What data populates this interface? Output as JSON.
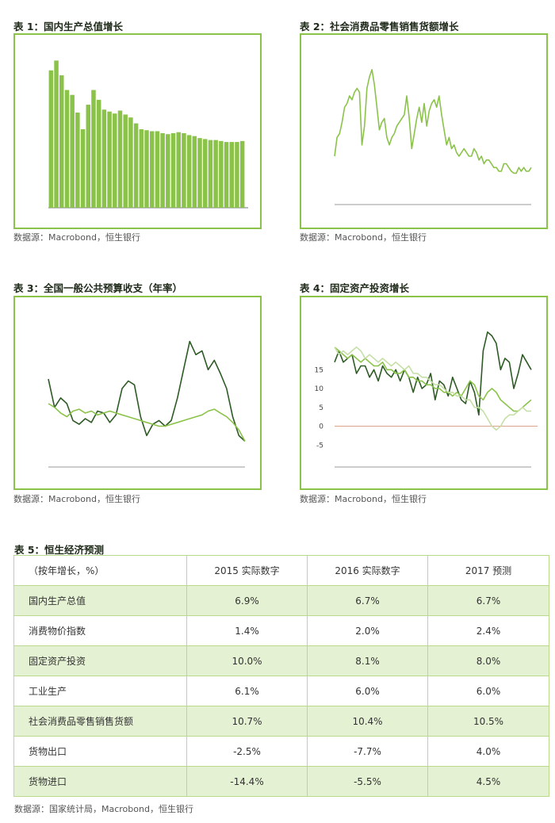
{
  "colors": {
    "frame": "#8bc34a",
    "bar": "#8bc34a",
    "dark_line": "#2e5a25",
    "light_line": "#8bc34a",
    "pale_line": "#c5dfa6",
    "zero_line": "#d9a58a",
    "row_shade": "#e4f1d2"
  },
  "charts": [
    {
      "title": "表 1：国内生产总值增长",
      "source": "数据源：Macrobond，恒生银行"
    },
    {
      "title": "表 2：社会消费品零售销售货额增长",
      "source": "数据源：Macrobond，恒生银行"
    },
    {
      "title": "表 3：全国一般公共预算收支（年率）",
      "source": "数据源：Macrobond，恒生银行"
    },
    {
      "title": "表 4：固定资产投资增长",
      "source": "数据源：Macrobond，恒生银行"
    }
  ],
  "chart_data": [
    {
      "type": "bar",
      "values": [
        14.0,
        15.0,
        13.5,
        12.0,
        11.5,
        9.7,
        8.0,
        10.5,
        12.0,
        11.0,
        10.0,
        9.8,
        9.6,
        9.9,
        9.5,
        9.2,
        8.6,
        8.0,
        7.9,
        7.8,
        7.8,
        7.6,
        7.5,
        7.6,
        7.7,
        7.6,
        7.4,
        7.3,
        7.1,
        7.0,
        6.9,
        6.9,
        6.8,
        6.7,
        6.7,
        6.7,
        6.8
      ],
      "ylim": [
        0,
        16
      ]
    },
    {
      "type": "line",
      "values": [
        12,
        17,
        18,
        21,
        25,
        26,
        28,
        27,
        29,
        30,
        29,
        15,
        20,
        30,
        33,
        35,
        31,
        25,
        19,
        21,
        22,
        17,
        15,
        17,
        18,
        20,
        21,
        22,
        23,
        28,
        22,
        14,
        18,
        22,
        25,
        21,
        26,
        20,
        24,
        26,
        27,
        25,
        28,
        23,
        19,
        15,
        17,
        14,
        15,
        13,
        12,
        13,
        14,
        13,
        12,
        12,
        14,
        13,
        11,
        12,
        10,
        11,
        11,
        10,
        9,
        9,
        8,
        8,
        10,
        10,
        9,
        8,
        7.5,
        7.5,
        9,
        8,
        9,
        8,
        8,
        9
      ],
      "ylim": [
        0,
        40
      ]
    },
    {
      "type": "line",
      "series": [
        {
          "values": [
            25,
            10,
            15,
            12,
            3,
            1,
            4,
            2,
            8,
            7,
            2,
            6,
            20,
            24,
            22,
            5,
            -5,
            1,
            3,
            0,
            3,
            15,
            30,
            45,
            38,
            40,
            30,
            35,
            28,
            20,
            5,
            -5,
            -8
          ]
        },
        {
          "values": [
            12,
            10,
            7,
            5,
            8,
            9,
            7,
            8,
            6,
            7,
            8,
            7,
            6,
            5,
            4,
            3,
            2,
            1,
            0,
            0,
            1,
            2,
            3,
            4,
            5,
            6,
            8,
            9,
            7,
            5,
            2,
            -2,
            -8
          ]
        }
      ],
      "ylim": [
        -20,
        60
      ]
    },
    {
      "type": "line",
      "series": [
        {
          "values": [
            17,
            20,
            17,
            18,
            19,
            14,
            16,
            16,
            13,
            15,
            12,
            16,
            14,
            13,
            15,
            12,
            15,
            13,
            9,
            13,
            10,
            11,
            14,
            7,
            12,
            11,
            8,
            13,
            10,
            7,
            6,
            12,
            9,
            3,
            20,
            25,
            24,
            22,
            15,
            18,
            17,
            10,
            14,
            19,
            17,
            15
          ]
        },
        {
          "values": [
            21,
            20,
            19,
            18,
            19,
            18,
            17,
            18,
            17,
            16,
            16,
            17,
            15,
            15,
            14,
            14,
            15,
            13,
            13,
            12,
            12,
            11,
            11,
            10,
            10,
            9,
            9,
            8,
            9,
            8,
            10,
            12,
            11,
            8,
            7,
            9,
            10,
            9,
            7,
            6,
            5,
            4,
            4,
            5,
            6,
            7
          ]
        },
        {
          "values": [
            21,
            19,
            20,
            19,
            20,
            21,
            20,
            18,
            19,
            18,
            17,
            18,
            17,
            16,
            17,
            16,
            15,
            16,
            14,
            14,
            13,
            13,
            12,
            11,
            11,
            10,
            9,
            9,
            8,
            8,
            7,
            7,
            5,
            5,
            4,
            2,
            0,
            -1,
            0,
            2,
            3,
            3,
            4,
            5,
            4,
            4
          ]
        }
      ],
      "yticks": [
        "-5",
        "0",
        "5",
        "10",
        "15"
      ],
      "ylim": [
        -10,
        30
      ]
    }
  ],
  "table": {
    "title": "表 5：恒生经济预测",
    "headers": [
      "（按年增长，%）",
      "2015 实际数字",
      "2016 实际数字",
      "2017 预测"
    ],
    "rows": [
      [
        "国内生产总值",
        "6.9%",
        "6.7%",
        "6.7%"
      ],
      [
        "消费物价指数",
        "1.4%",
        "2.0%",
        "2.4%"
      ],
      [
        "固定资产投资",
        "10.0%",
        "8.1%",
        "8.0%"
      ],
      [
        "工业生产",
        "6.1%",
        "6.0%",
        "6.0%"
      ],
      [
        "社会消费品零售销售货额",
        "10.7%",
        "10.4%",
        "10.5%"
      ],
      [
        "货物出口",
        "-2.5%",
        "-7.7%",
        "4.0%"
      ],
      [
        "货物进口",
        "-14.4%",
        "-5.5%",
        "4.5%"
      ]
    ],
    "source": "数据源：国家统计局，Macrobond，恒生银行"
  }
}
